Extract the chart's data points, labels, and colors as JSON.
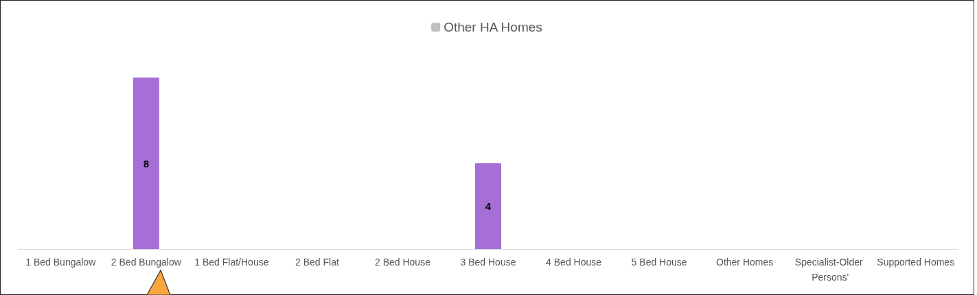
{
  "chart_data": {
    "type": "bar",
    "categories": [
      "1 Bed Bungalow",
      "2 Bed Bungalow",
      "1 Bed Flat/House",
      "2 Bed Flat",
      "2 Bed House",
      "3 Bed House",
      "4 Bed House",
      "5 Bed House",
      "Other Homes",
      "Specialist-Older Persons'",
      "Supported Homes"
    ],
    "series": [
      {
        "color": "#a66fd6",
        "values": [
          0,
          8,
          0,
          0,
          0,
          4,
          0,
          0,
          0,
          0,
          0
        ],
        "value_labels": [
          null,
          "8",
          null,
          null,
          null,
          "4",
          null,
          null,
          null,
          null,
          null
        ]
      },
      {
        "name": "Other HA Homes",
        "color": "#bfbfbf",
        "values": [
          0,
          0,
          0,
          0,
          0,
          0,
          0,
          0,
          0,
          0,
          0
        ]
      }
    ],
    "legend": "top",
    "grid": false
  }
}
